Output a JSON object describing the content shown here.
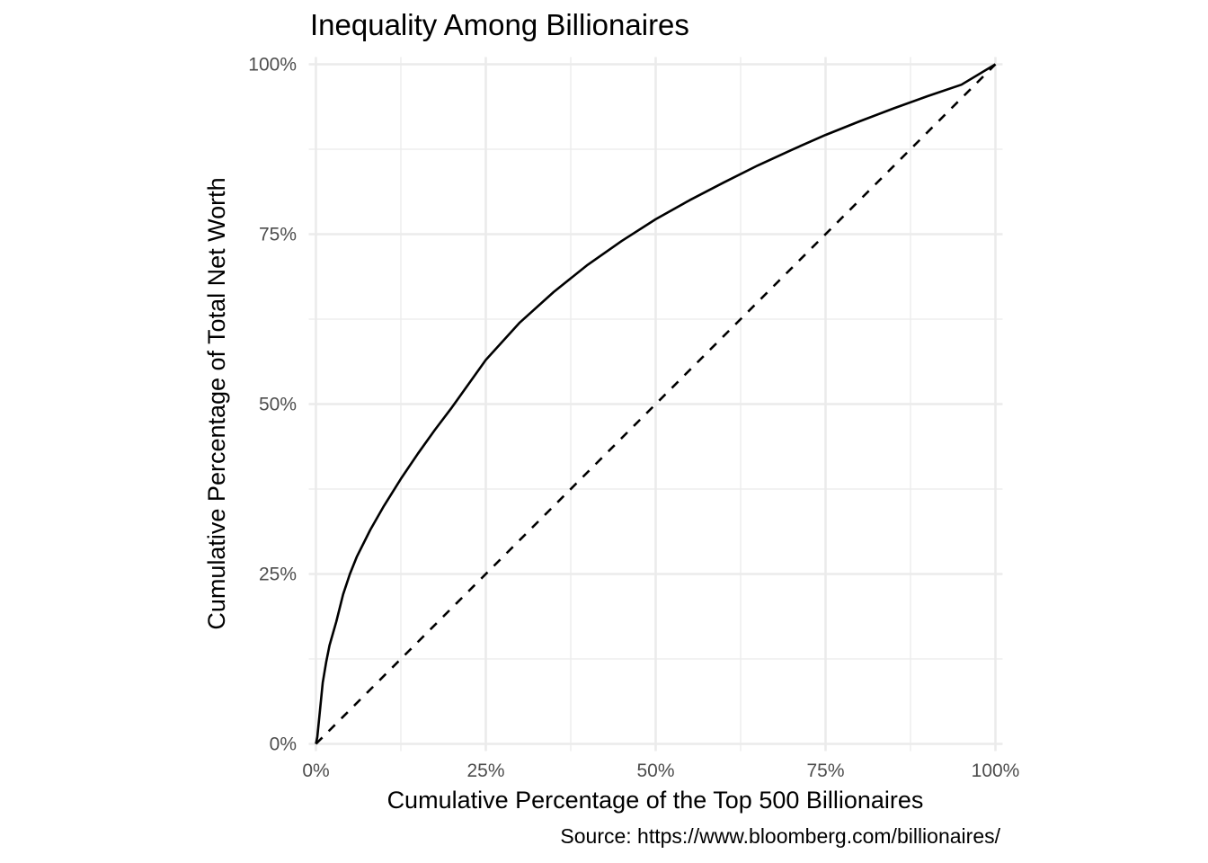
{
  "chart_data": {
    "type": "line",
    "title": "Inequality Among Billionaires",
    "xlabel": "Cumulative Percentage of the Top 500 Billionaires",
    "ylabel": "Cumulative Percentage of Total Net Worth",
    "caption": "Source: https://www.bloomberg.com/billionaires/",
    "xlim": [
      0,
      1
    ],
    "ylim": [
      0,
      1
    ],
    "x_ticks": [
      0,
      0.25,
      0.5,
      0.75,
      1
    ],
    "x_tick_labels": [
      "0%",
      "25%",
      "50%",
      "75%",
      "100%"
    ],
    "y_ticks": [
      0,
      0.25,
      0.5,
      0.75,
      1
    ],
    "y_tick_labels": [
      "0%",
      "25%",
      "50%",
      "75%",
      "100%"
    ],
    "grid": true,
    "series": [
      {
        "style": "solid",
        "color": "#000000",
        "x": [
          0,
          0.002,
          0.006,
          0.01,
          0.015,
          0.02,
          0.03,
          0.04,
          0.05,
          0.06,
          0.08,
          0.1,
          0.125,
          0.15,
          0.175,
          0.2,
          0.25,
          0.3,
          0.35,
          0.4,
          0.45,
          0.5,
          0.55,
          0.6,
          0.65,
          0.7,
          0.75,
          0.8,
          0.85,
          0.9,
          0.95,
          1.0
        ],
        "y": [
          0,
          0.01,
          0.05,
          0.09,
          0.12,
          0.145,
          0.18,
          0.22,
          0.25,
          0.275,
          0.315,
          0.35,
          0.39,
          0.427,
          0.462,
          0.495,
          0.565,
          0.62,
          0.665,
          0.705,
          0.74,
          0.772,
          0.8,
          0.826,
          0.851,
          0.874,
          0.896,
          0.916,
          0.935,
          0.953,
          0.97,
          1.0
        ]
      },
      {
        "style": "dashed",
        "color": "#000000",
        "x": [
          0,
          1
        ],
        "y": [
          0,
          1
        ]
      }
    ]
  }
}
